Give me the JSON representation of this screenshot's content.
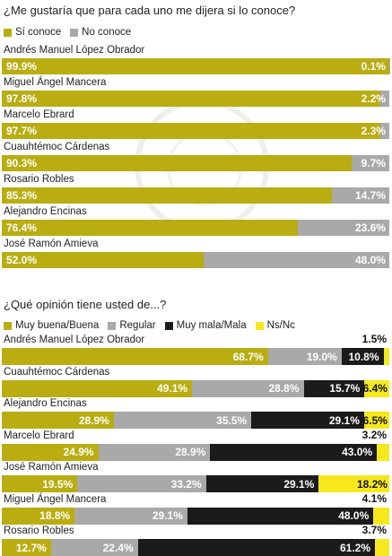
{
  "colors": {
    "gold": "#b9ad12",
    "gray": "#a9a9a9",
    "black": "#1b1b1b",
    "yellow": "#f7e81e"
  },
  "chart_data": [
    {
      "type": "bar",
      "title": "¿Me gustaría que para cada uno me dijera si lo conoce?",
      "orientation": "horizontal-stacked",
      "legend": [
        "Sí conoce",
        "No conoce"
      ],
      "legend_placement": "top-left",
      "xlim": [
        0,
        100
      ],
      "categories": [
        "Andrés Manuel López Obrador",
        "Miguel Ángel Mancera",
        "Marcelo Ebrard",
        "Cuauhtémoc Cárdenas",
        "Rosario Robles",
        "Alejandro Encinas",
        "José Ramón Amieva"
      ],
      "series": [
        {
          "name": "Sí conoce",
          "values": [
            99.9,
            97.8,
            97.7,
            90.3,
            85.3,
            76.4,
            52.0
          ],
          "labels": [
            "99.9%",
            "97.8%",
            "97.7%",
            "90.3%",
            "85.3%",
            "76.4%",
            "52.0%"
          ]
        },
        {
          "name": "No conoce",
          "values": [
            0.1,
            2.2,
            2.3,
            9.7,
            14.7,
            23.6,
            48.0
          ],
          "labels": [
            "0.1%",
            "2.2%",
            "2.3%",
            "9.7%",
            "14.7%",
            "23.6%",
            "48.0%"
          ]
        }
      ]
    },
    {
      "type": "bar",
      "title": "¿Qué opinión tiene usted de...?",
      "orientation": "horizontal-stacked",
      "legend": [
        "Muy buena/Buena",
        "Regular",
        "Muy mala/Mala",
        "Ns/Nc"
      ],
      "legend_placement": "top-left",
      "xlim": [
        0,
        100
      ],
      "categories": [
        "Andrés Manuel López Obrador",
        "Cuauhtémoc Cárdenas",
        "Alejandro Encinas",
        "Marcelo Ebrard",
        "José Ramón Amieva",
        "Miguel Ángel Mancera",
        "Rosario Robles"
      ],
      "series": [
        {
          "name": "Muy buena/Buena",
          "values": [
            68.7,
            49.1,
            28.9,
            24.9,
            19.5,
            18.8,
            12.7
          ],
          "labels": [
            "68.7%",
            "49.1%",
            "28.9%",
            "24.9%",
            "19.5%",
            "18.8%",
            "12.7%"
          ]
        },
        {
          "name": "Regular",
          "values": [
            19.0,
            28.8,
            35.5,
            28.9,
            33.2,
            29.1,
            22.4
          ],
          "labels": [
            "19.0%",
            "28.8%",
            "35.5%",
            "28.9%",
            "33.2%",
            "29.1%",
            "22.4%"
          ]
        },
        {
          "name": "Muy mala/Mala",
          "values": [
            10.8,
            15.7,
            29.1,
            43.0,
            29.1,
            48.0,
            61.2
          ],
          "labels": [
            "10.8%",
            "15.7%",
            "29.1%",
            "43.0%",
            "29.1%",
            "48.0%",
            "61.2%"
          ]
        },
        {
          "name": "Ns/Nc",
          "values": [
            1.5,
            6.4,
            6.5,
            3.2,
            18.2,
            4.1,
            3.7
          ],
          "labels": [
            "1.5%",
            "6.4%",
            "6.5%",
            "3.2%",
            "18.2%",
            "4.1%",
            "3.7%"
          ]
        }
      ]
    }
  ]
}
